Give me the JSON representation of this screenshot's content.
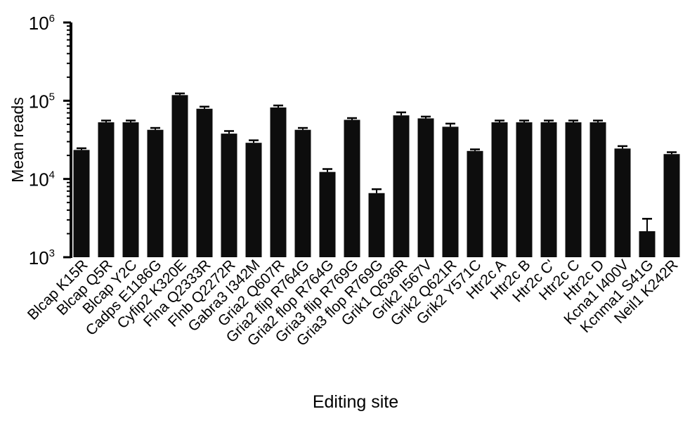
{
  "chart_data": {
    "type": "bar",
    "title": "",
    "xlabel": "Editing site",
    "ylabel": "Mean reads",
    "yscale": "log",
    "ylim": [
      1000,
      1000000
    ],
    "yticks": [
      {
        "value": 1000,
        "base": "10",
        "exp": "3"
      },
      {
        "value": 10000,
        "base": "10",
        "exp": "4"
      },
      {
        "value": 100000,
        "base": "10",
        "exp": "5"
      },
      {
        "value": 1000000,
        "base": "10",
        "exp": "6"
      }
    ],
    "bar_color": "#0d0d0d",
    "grid": false,
    "legend": "none",
    "categories": [
      "Blcap K15R",
      "Blcap Q5R",
      "Blcap Y2C",
      "Cadps E1186G",
      "Cyfip2 K320E",
      "Flna Q2333R",
      "Flnb Q2272R",
      "Gabra3 I342M",
      "Gria2 Q607R",
      "Gria2 flip R764G",
      "Gria2 flop R764G",
      "Gria3 flip R769G",
      "Gria3 flop R769G",
      "Grik1 Q636R",
      "Grik2 I567V",
      "Grik2 Q621R",
      "Grik2 Y571C",
      "Htr2c A",
      "Htr2c B",
      "Htr2c C'",
      "Htr2c C",
      "Htr2c D",
      "Kcna1 I400V",
      "Kcnma1 S41G",
      "Neil1 K242R"
    ],
    "values": [
      23500,
      53000,
      53000,
      42500,
      118000,
      79000,
      38000,
      29000,
      82000,
      42500,
      12300,
      57000,
      6600,
      65000,
      59500,
      46500,
      22800,
      53000,
      53000,
      53000,
      53000,
      53000,
      24500,
      2150,
      20800
    ],
    "errors": [
      1200,
      2800,
      2800,
      2400,
      6000,
      5000,
      3000,
      2200,
      5000,
      2400,
      1100,
      3000,
      800,
      6000,
      3200,
      4500,
      1100,
      2800,
      2800,
      2800,
      2800,
      2800,
      1800,
      950,
      1200
    ]
  }
}
